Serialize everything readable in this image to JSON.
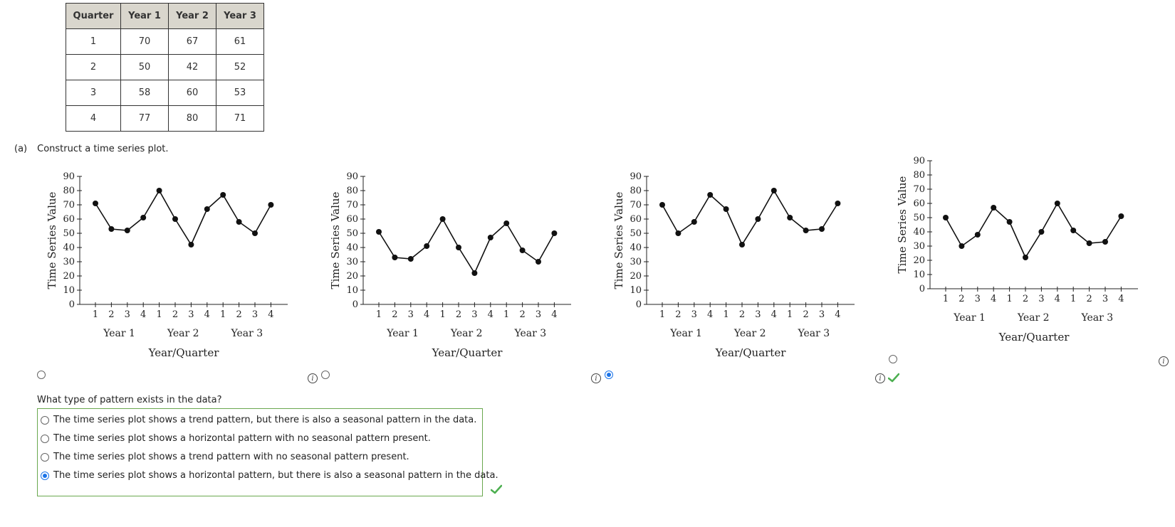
{
  "table": {
    "headers": [
      "Quarter",
      "Year 1",
      "Year 2",
      "Year 3"
    ],
    "rows": [
      [
        "1",
        "70",
        "67",
        "61"
      ],
      [
        "2",
        "50",
        "42",
        "52"
      ],
      [
        "3",
        "58",
        "60",
        "53"
      ],
      [
        "4",
        "77",
        "80",
        "71"
      ]
    ]
  },
  "part_a": {
    "label": "(a)",
    "instruction": "Construct a time series plot."
  },
  "chart_data": [
    {
      "type": "line",
      "ylabel": "Time Series Value",
      "xlabel": "Year/Quarter",
      "ylim": [
        0,
        90
      ],
      "yticks": [
        "0",
        "10",
        "20",
        "30",
        "40",
        "50",
        "60",
        "70",
        "80",
        "90"
      ],
      "quarter_ticks": [
        "1",
        "2",
        "3",
        "4",
        "1",
        "2",
        "3",
        "4",
        "1",
        "2",
        "3",
        "4"
      ],
      "year_labels": [
        "Year 1",
        "Year 2",
        "Year 3"
      ],
      "values": [
        71,
        53,
        52,
        61,
        80,
        60,
        42,
        67,
        77,
        58,
        50,
        70
      ],
      "selected": false
    },
    {
      "type": "line",
      "ylabel": "Time Series Value",
      "xlabel": "Year/Quarter",
      "ylim": [
        0,
        90
      ],
      "yticks": [
        "0",
        "10",
        "20",
        "30",
        "40",
        "50",
        "60",
        "70",
        "80",
        "90"
      ],
      "quarter_ticks": [
        "1",
        "2",
        "3",
        "4",
        "1",
        "2",
        "3",
        "4",
        "1",
        "2",
        "3",
        "4"
      ],
      "year_labels": [
        "Year 1",
        "Year 2",
        "Year 3"
      ],
      "values": [
        51,
        33,
        32,
        41,
        60,
        40,
        22,
        47,
        57,
        38,
        30,
        50
      ],
      "selected": false
    },
    {
      "type": "line",
      "ylabel": "Time Series Value",
      "xlabel": "Year/Quarter",
      "ylim": [
        0,
        90
      ],
      "yticks": [
        "0",
        "10",
        "20",
        "30",
        "40",
        "50",
        "60",
        "70",
        "80",
        "90"
      ],
      "quarter_ticks": [
        "1",
        "2",
        "3",
        "4",
        "1",
        "2",
        "3",
        "4",
        "1",
        "2",
        "3",
        "4"
      ],
      "year_labels": [
        "Year 1",
        "Year 2",
        "Year 3"
      ],
      "values": [
        70,
        50,
        58,
        77,
        67,
        42,
        60,
        80,
        61,
        52,
        53,
        71
      ],
      "selected": true
    },
    {
      "type": "line",
      "ylabel": "Time Series Value",
      "xlabel": "Year/Quarter",
      "ylim": [
        0,
        90
      ],
      "yticks": [
        "0",
        "10",
        "20",
        "30",
        "40",
        "50",
        "60",
        "70",
        "80",
        "90"
      ],
      "quarter_ticks": [
        "1",
        "2",
        "3",
        "4",
        "1",
        "2",
        "3",
        "4",
        "1",
        "2",
        "3",
        "4"
      ],
      "year_labels": [
        "Year 1",
        "Year 2",
        "Year 3"
      ],
      "values": [
        50,
        30,
        38,
        57,
        47,
        22,
        40,
        60,
        41,
        32,
        33,
        51
      ],
      "selected": false
    }
  ],
  "question": {
    "text": "What type of pattern exists in the data?",
    "options": [
      "The time series plot shows a trend pattern, but there is also a seasonal pattern in the data.",
      "The time series plot shows a horizontal pattern with no seasonal pattern present.",
      "The time series plot shows a trend pattern with no seasonal pattern present.",
      "The time series plot shows a horizontal pattern, but there is also a seasonal pattern in the data."
    ],
    "selected_index": 3
  },
  "icons": {
    "info": "info-icon",
    "correct": "check-icon"
  },
  "colors": {
    "selected_radio": "#1a73e8",
    "correct_check": "#4caf50",
    "answer_border": "#6aa84f",
    "table_header_bg": "#d9d6cd"
  }
}
